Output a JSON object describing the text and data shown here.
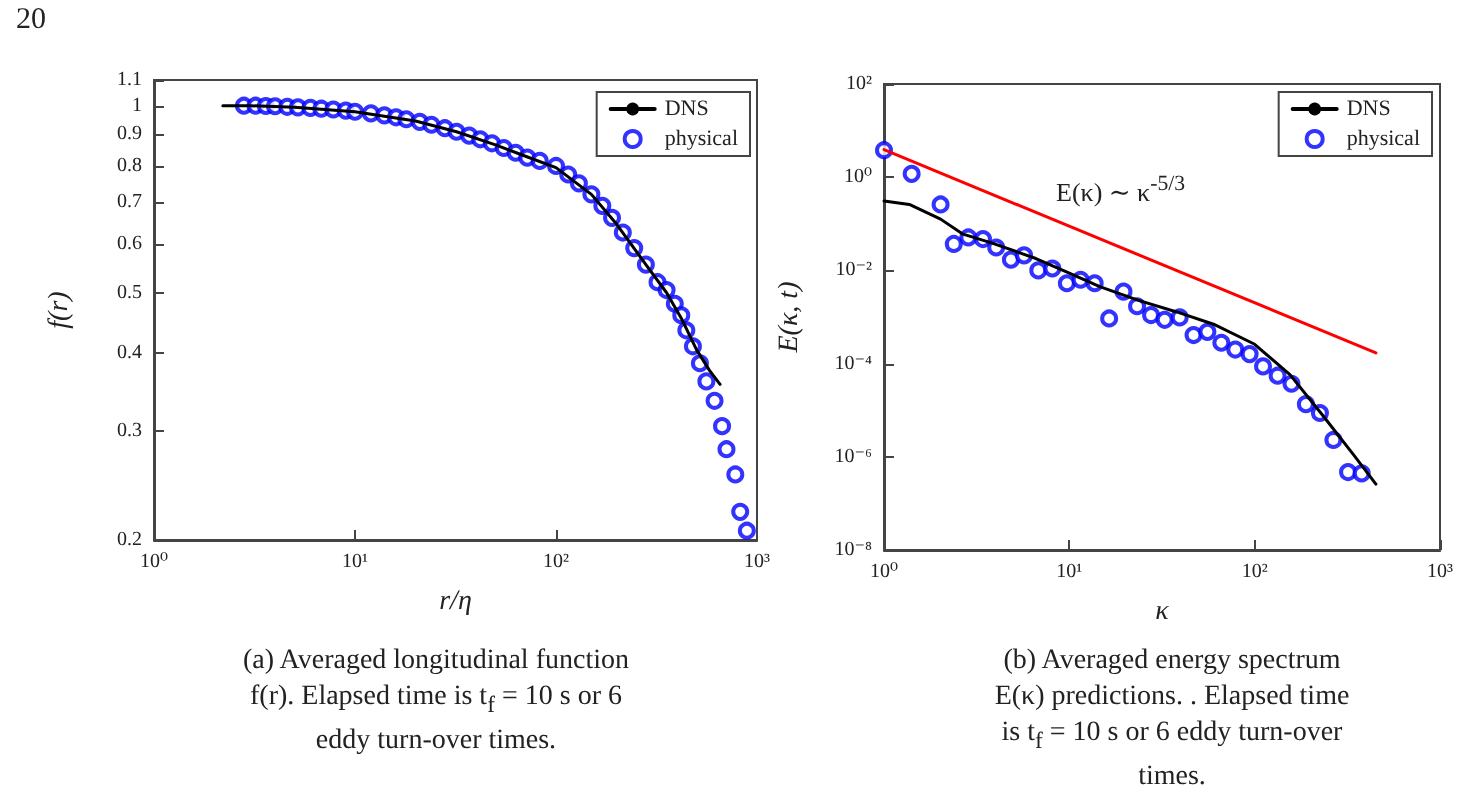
{
  "chart_data": [
    {
      "type": "line",
      "xlabel": "r/η",
      "ylabel": "f(r)",
      "annotations": [
        "20",
        "(a) Averaged longitudinal function f(r). Elapsed time is t$_{f}$ = 10 s or 6 eddy turn-over times."
      ],
      "xlim": [
        1,
        1000
      ],
      "ylim": [
        0.2,
        1.1
      ],
      "log": "xy",
      "legend": "top right",
      "xticks": [
        {
          "value": 1,
          "label": "10⁰"
        },
        {
          "value": 10,
          "label": "10¹"
        },
        {
          "value": 100,
          "label": "10²"
        },
        {
          "value": 1000,
          "label": "10³"
        }
      ],
      "yticks": [
        0.2,
        0.3,
        0.4,
        0.5,
        0.6,
        0.7,
        0.8,
        0.9,
        1,
        1.1
      ],
      "series": [
        {
          "name": "DNS",
          "color": "#000000",
          "x": [
            2.2,
            3,
            5,
            10,
            20,
            32,
            50,
            70,
            100,
            150,
            200,
            280,
            355,
            420,
            500,
            580,
            655
          ],
          "values": [
            1.0,
            1.0,
            0.994,
            0.978,
            0.945,
            0.908,
            0.865,
            0.83,
            0.795,
            0.72,
            0.645,
            0.555,
            0.5,
            0.455,
            0.405,
            0.375,
            0.356
          ]
        },
        {
          "name": "physical",
          "type": "scatter",
          "marker": "circle",
          "color": "#0000ff",
          "x": [
            2.8,
            3.2,
            3.6,
            4.0,
            4.6,
            5.2,
            6.0,
            6.8,
            7.8,
            9.0,
            10,
            12,
            14,
            16,
            18,
            21,
            24,
            28,
            32,
            37,
            42,
            48,
            55,
            63,
            72,
            83,
            100,
            115,
            130,
            150,
            170,
            190,
            215,
            245,
            280,
            320,
            355,
            390,
            420,
            445,
            480,
            520,
            560,
            615,
            670,
            705,
            780,
            825,
            890
          ],
          "values": [
            1.0,
            1.0,
            0.999,
            0.998,
            0.996,
            0.994,
            0.992,
            0.989,
            0.986,
            0.982,
            0.978,
            0.972,
            0.965,
            0.958,
            0.951,
            0.942,
            0.932,
            0.92,
            0.908,
            0.895,
            0.883,
            0.87,
            0.855,
            0.84,
            0.825,
            0.815,
            0.8,
            0.775,
            0.75,
            0.72,
            0.69,
            0.66,
            0.625,
            0.59,
            0.555,
            0.52,
            0.505,
            0.48,
            0.46,
            0.435,
            0.41,
            0.385,
            0.36,
            0.335,
            0.305,
            0.28,
            0.255,
            0.222,
            0.207
          ]
        }
      ]
    },
    {
      "type": "line",
      "xlabel": "κ",
      "ylabel": "E(κ, t)",
      "annotations": [
        "E(κ) ∼ κ$^{-5/3}$",
        "(b) Averaged energy spectrum E(κ) predictions. . Elapsed time is t$_{f}$ = 10 s or 6 eddy turn-over times."
      ],
      "xlim": [
        1,
        1000
      ],
      "ylim": [
        1e-08,
        100
      ],
      "log": "xy",
      "legend": "top right",
      "xticks": [
        {
          "value": 1,
          "label": "10⁰"
        },
        {
          "value": 10,
          "label": "10¹"
        },
        {
          "value": 100,
          "label": "10²"
        },
        {
          "value": 1000,
          "label": "10³"
        }
      ],
      "yticks": [
        {
          "value": 1e-08,
          "label": "10⁻⁸"
        },
        {
          "value": 1e-06,
          "label": "10⁻⁶"
        },
        {
          "value": 0.0001,
          "label": "10⁻⁴"
        },
        {
          "value": 0.01,
          "label": "10⁻²"
        },
        {
          "value": 1,
          "label": "10⁰"
        },
        {
          "value": 100,
          "label": "10²"
        }
      ],
      "series": [
        {
          "name": "DNS",
          "color": "#000000",
          "x": [
            1,
            1.37,
            2.02,
            2.67,
            3.8,
            6.6,
            10,
            14.6,
            23.4,
            37.6,
            60,
            100,
            155,
            231,
            342,
            451
          ],
          "values": [
            0.31,
            0.26,
            0.126,
            0.06,
            0.039,
            0.018,
            0.0087,
            0.0045,
            0.0023,
            0.0013,
            0.0007,
            0.00026,
            5.8e-05,
            8.1e-06,
            1.1e-06,
            2.6e-07
          ]
        },
        {
          "name": "physical",
          "type": "scatter",
          "marker": "circle",
          "color": "#0000ff",
          "x": [
            1,
            1.41,
            2.02,
            2.38,
            2.85,
            3.42,
            4.03,
            4.84,
            5.7,
            6.8,
            8.1,
            9.7,
            11.5,
            13.7,
            16.4,
            19.6,
            23.2,
            27.6,
            32.7,
            39.4,
            46.8,
            55.6,
            66.1,
            78.6,
            93.9,
            111,
            133,
            158,
            189,
            225,
            266,
            319,
            378
          ],
          "values": [
            3.8,
            1.18,
            0.26,
            0.037,
            0.051,
            0.047,
            0.031,
            0.017,
            0.021,
            0.01,
            0.011,
            0.0053,
            0.0063,
            0.0053,
            0.00093,
            0.0035,
            0.0017,
            0.0011,
            0.00087,
            0.00098,
            0.00041,
            0.00048,
            0.00028,
            0.0002,
            0.00016,
            8.7e-05,
            5.5e-05,
            3.7e-05,
            1.35e-05,
            8.7e-06,
            2.3e-06,
            4.7e-07,
            4.4e-07
          ]
        },
        {
          "color": "#ff0000",
          "x": [
            1,
            451
          ],
          "values": [
            3.9,
            0.00017
          ]
        }
      ]
    }
  ]
}
